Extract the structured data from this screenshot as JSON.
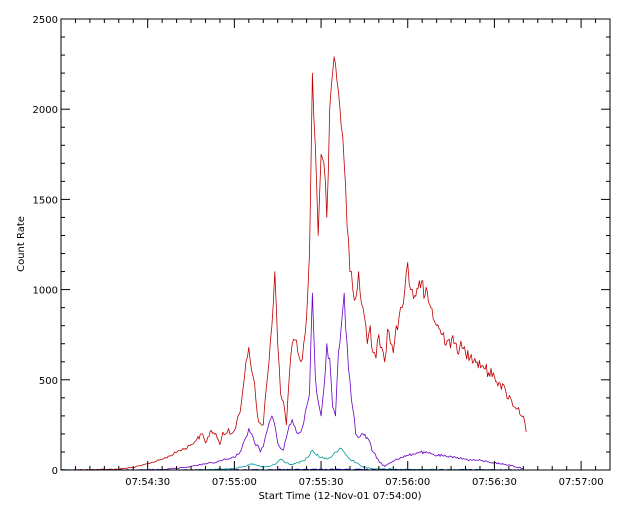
{
  "chart_data": {
    "type": "line",
    "title": "",
    "xlabel": "Start Time (12-Nov-01 07:54:00)",
    "ylabel": "Count Rate",
    "x_unit": "seconds after 07:54:00",
    "xlim": [
      0,
      190
    ],
    "ylim": [
      0,
      2500
    ],
    "x_ticks": [
      {
        "value": 30,
        "label": "07:54:30"
      },
      {
        "value": 60,
        "label": "07:55:00"
      },
      {
        "value": 90,
        "label": "07:55:30"
      },
      {
        "value": 120,
        "label": "07:56:00"
      },
      {
        "value": 150,
        "label": "07:56:30"
      },
      {
        "value": 180,
        "label": "07:57:00"
      }
    ],
    "y_ticks": [
      {
        "value": 0,
        "label": "0"
      },
      {
        "value": 500,
        "label": "500"
      },
      {
        "value": 1000,
        "label": "1000"
      },
      {
        "value": 1500,
        "label": "1500"
      },
      {
        "value": 2000,
        "label": "2000"
      },
      {
        "value": 2500,
        "label": "2500"
      }
    ],
    "grid": false,
    "legend": "none",
    "series": [
      {
        "color": "#c00000",
        "x": [
          0,
          10,
          20,
          25,
          28,
          31,
          35,
          38,
          41,
          43,
          45,
          47,
          49,
          50,
          52,
          54,
          55,
          56,
          57,
          58,
          59,
          60,
          62,
          63,
          64,
          65,
          66,
          67,
          68,
          69,
          70,
          71,
          72,
          73,
          74,
          75,
          76,
          77,
          78,
          79,
          80,
          81,
          82,
          83,
          84,
          85,
          86,
          87,
          88,
          89,
          90,
          91,
          92,
          93,
          94,
          95,
          96,
          97,
          98,
          99,
          100,
          101,
          102,
          103,
          104,
          105,
          106,
          107,
          108,
          109,
          110,
          111,
          112,
          113,
          114,
          115,
          116,
          117,
          118,
          119,
          120,
          121,
          122,
          124,
          126,
          128,
          130,
          132,
          134,
          136,
          138,
          140,
          142,
          144,
          146,
          148,
          150,
          152,
          154,
          156,
          158,
          160,
          161
        ],
        "values": [
          0,
          2,
          5,
          15,
          25,
          40,
          60,
          80,
          110,
          120,
          140,
          170,
          200,
          150,
          220,
          180,
          140,
          210,
          200,
          230,
          200,
          220,
          320,
          450,
          600,
          680,
          550,
          480,
          300,
          260,
          250,
          450,
          600,
          800,
          1100,
          700,
          420,
          380,
          250,
          520,
          700,
          720,
          650,
          600,
          700,
          850,
          1200,
          2200,
          1800,
          1300,
          1750,
          1700,
          1400,
          2000,
          2200,
          2250,
          2100,
          1900,
          1700,
          1350,
          1100,
          1000,
          950,
          1100,
          920,
          850,
          700,
          800,
          650,
          620,
          750,
          680,
          600,
          780,
          700,
          650,
          800,
          850,
          900,
          1000,
          1150,
          1000,
          950,
          1050,
          970,
          900,
          800,
          750,
          720,
          700,
          680,
          650,
          640,
          600,
          580,
          540,
          520,
          480,
          430,
          380,
          340,
          300,
          210
        ]
      },
      {
        "color": "#6a00c8",
        "x": [
          0,
          20,
          35,
          40,
          44,
          47,
          50,
          53,
          56,
          58,
          60,
          62,
          64,
          65,
          66,
          67,
          68,
          69,
          70,
          71,
          72,
          73,
          74,
          75,
          76,
          77,
          78,
          79,
          80,
          81,
          82,
          83,
          84,
          85,
          86,
          87,
          88,
          89,
          90,
          91,
          92,
          93,
          94,
          95,
          96,
          97,
          98,
          99,
          100,
          101,
          102,
          103,
          104,
          106,
          108,
          110,
          112,
          114,
          116,
          118,
          120,
          122,
          124,
          126,
          128,
          130,
          132,
          134,
          136,
          138,
          140,
          142,
          144,
          146,
          148,
          150,
          152,
          154,
          156,
          158,
          160
        ],
        "values": [
          0,
          0,
          3,
          10,
          15,
          25,
          35,
          40,
          55,
          60,
          70,
          100,
          180,
          230,
          200,
          150,
          140,
          100,
          130,
          200,
          260,
          300,
          250,
          150,
          120,
          110,
          180,
          250,
          280,
          240,
          200,
          210,
          260,
          350,
          420,
          980,
          520,
          380,
          300,
          450,
          700,
          620,
          350,
          300,
          650,
          800,
          980,
          700,
          500,
          340,
          200,
          180,
          200,
          180,
          100,
          50,
          20,
          40,
          60,
          70,
          80,
          90,
          100,
          95,
          90,
          80,
          80,
          70,
          75,
          65,
          60,
          55,
          55,
          50,
          45,
          40,
          35,
          30,
          25,
          15,
          10
        ]
      },
      {
        "color": "#009898",
        "x": [
          0,
          40,
          50,
          55,
          60,
          64,
          66,
          68,
          70,
          72,
          74,
          76,
          78,
          80,
          82,
          84,
          86,
          87,
          88,
          90,
          92,
          94,
          96,
          97,
          98,
          100,
          102,
          104,
          106,
          110,
          120,
          140,
          160
        ],
        "values": [
          0,
          0,
          2,
          5,
          10,
          20,
          35,
          25,
          15,
          20,
          30,
          60,
          40,
          30,
          40,
          50,
          80,
          110,
          90,
          70,
          60,
          80,
          110,
          120,
          100,
          60,
          40,
          20,
          10,
          5,
          3,
          2,
          0
        ]
      },
      {
        "color": "#0000c8",
        "x": [
          0,
          50,
          60,
          70,
          80,
          90,
          100,
          110,
          120,
          140,
          160
        ],
        "values": [
          0,
          0,
          1,
          2,
          3,
          4,
          3,
          2,
          1,
          1,
          0
        ]
      }
    ]
  }
}
